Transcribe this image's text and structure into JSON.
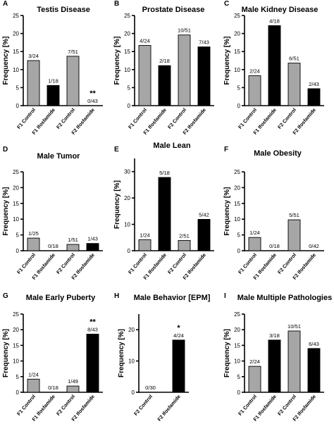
{
  "colors": {
    "control": "#a6a6a6",
    "ifosfamide": "#000000",
    "axis": "#000000"
  },
  "chart_data": [
    {
      "letter": "A",
      "title": "Testis Disease",
      "type": "bar",
      "ylabel": "Frequency [%]",
      "ylim": [
        0,
        25
      ],
      "yticks": [
        0,
        5,
        10,
        15,
        20,
        25
      ],
      "categories": [
        "F1 Control",
        "F1 Ifosfamide",
        "F2 Control",
        "F2 Ifosfamide"
      ],
      "values": [
        12.5,
        5.6,
        13.7,
        0
      ],
      "groups": [
        "control",
        "ifosfamide",
        "control",
        "ifosfamide"
      ],
      "labels": [
        "3/24",
        "1/18",
        "7/51",
        "0/43"
      ],
      "significance": [
        "",
        "",
        "",
        "**"
      ]
    },
    {
      "letter": "B",
      "title": "Prostate Disease",
      "type": "bar",
      "ylabel": "Frequency [%]",
      "ylim": [
        0,
        25
      ],
      "yticks": [
        0,
        5,
        10,
        15,
        20,
        25
      ],
      "categories": [
        "F1 Control",
        "F1 Ifosfamide",
        "F2 Control",
        "F2 Ifosfamide"
      ],
      "values": [
        16.7,
        11.1,
        19.6,
        16.3
      ],
      "groups": [
        "control",
        "ifosfamide",
        "control",
        "ifosfamide"
      ],
      "labels": [
        "4/24",
        "2/18",
        "10/51",
        "7/43"
      ],
      "significance": [
        "",
        "",
        "",
        ""
      ]
    },
    {
      "letter": "C",
      "title": "Male Kidney Disease",
      "type": "bar",
      "ylabel": "Frequency [%]",
      "ylim": [
        0,
        25
      ],
      "yticks": [
        0,
        5,
        10,
        15,
        20,
        25
      ],
      "categories": [
        "F1 Control",
        "F1 Ifosfamide",
        "F2 Control",
        "F2 Ifosfamide"
      ],
      "values": [
        8.3,
        22.2,
        11.8,
        4.7
      ],
      "groups": [
        "control",
        "ifosfamide",
        "control",
        "ifosfamide"
      ],
      "labels": [
        "2/24",
        "4/18",
        "6/51",
        "2/43"
      ],
      "significance": [
        "",
        "",
        "",
        ""
      ]
    },
    {
      "letter": "D",
      "title": "Male Tumor",
      "type": "bar",
      "ylabel": "Frequency [%]",
      "ylim": [
        0,
        25
      ],
      "yticks": [
        0,
        5,
        10,
        15,
        20,
        25
      ],
      "categories": [
        "F1 Control",
        "F1 Ifosfamide",
        "F2 Control",
        "F2 Ifosfamide"
      ],
      "values": [
        4.0,
        0,
        2.0,
        2.3
      ],
      "groups": [
        "control",
        "ifosfamide",
        "control",
        "ifosfamide"
      ],
      "labels": [
        "1/25",
        "0/18",
        "1/51",
        "1/43"
      ],
      "significance": [
        "",
        "",
        "",
        ""
      ]
    },
    {
      "letter": "E",
      "title": "Male Lean",
      "type": "bar",
      "ylabel": "Frequency [%]",
      "ylim": [
        0,
        35
      ],
      "yticks": [
        0,
        10,
        20,
        30
      ],
      "categories": [
        "F1 Control",
        "F1 Ifosfamide",
        "F2 Control",
        "F2 Ifosfamide"
      ],
      "values": [
        4.2,
        27.8,
        3.9,
        11.9
      ],
      "groups": [
        "control",
        "ifosfamide",
        "control",
        "ifosfamide"
      ],
      "labels": [
        "1/24",
        "5/18",
        "2/51",
        "5/42"
      ],
      "significance": [
        "",
        "",
        "",
        ""
      ]
    },
    {
      "letter": "F",
      "title": "Male Obesity",
      "type": "bar",
      "ylabel": "Frequency [%]",
      "ylim": [
        0,
        25
      ],
      "yticks": [
        0,
        5,
        10,
        15,
        20,
        25
      ],
      "categories": [
        "F1 Control",
        "F1 Ifosfamide",
        "F2 Control",
        "F2 Ifosfamide"
      ],
      "values": [
        4.2,
        0,
        9.8,
        0
      ],
      "groups": [
        "control",
        "ifosfamide",
        "control",
        "ifosfamide"
      ],
      "labels": [
        "1/24",
        "0/18",
        "5/51",
        "0/42"
      ],
      "significance": [
        "",
        "",
        "",
        ""
      ]
    },
    {
      "letter": "G",
      "title": "Male Early Puberty",
      "type": "bar",
      "ylabel": "Frequency [%]",
      "ylim": [
        0,
        25
      ],
      "yticks": [
        0,
        5,
        10,
        15,
        20,
        25
      ],
      "categories": [
        "F1 Control",
        "F1 Ifosfamide",
        "F2 Control",
        "F2 Ifosfamide"
      ],
      "values": [
        4.2,
        0,
        2.0,
        18.6
      ],
      "groups": [
        "control",
        "ifosfamide",
        "control",
        "ifosfamide"
      ],
      "labels": [
        "1/24",
        "0/18",
        "1/49",
        "8/43"
      ],
      "significance": [
        "",
        "",
        "",
        "**"
      ]
    },
    {
      "letter": "H",
      "title": "Male Behavior [EPM]",
      "type": "bar",
      "ylabel": "Frequency [%]",
      "ylim": [
        0,
        25
      ],
      "yticks": [
        0,
        10,
        20
      ],
      "categories": [
        "F2 Control",
        "F2 Ifosfamide"
      ],
      "values": [
        0,
        16.7
      ],
      "groups": [
        "control",
        "ifosfamide"
      ],
      "labels": [
        "0/30",
        "4/24"
      ],
      "significance": [
        "",
        "*"
      ]
    },
    {
      "letter": "I",
      "title": "Male Multiple Pathologies",
      "type": "bar",
      "ylabel": "Frequency [%]",
      "ylim": [
        0,
        25
      ],
      "yticks": [
        0,
        5,
        10,
        15,
        20,
        25
      ],
      "categories": [
        "F1 Control",
        "F1 Ifosfamide",
        "F2 Control",
        "F2 Ifosfamide"
      ],
      "values": [
        8.3,
        16.7,
        19.6,
        14.0
      ],
      "groups": [
        "control",
        "ifosfamide",
        "control",
        "ifosfamide"
      ],
      "labels": [
        "2/24",
        "3/18",
        "10/51",
        "6/43"
      ],
      "significance": [
        "",
        "",
        "",
        ""
      ]
    }
  ]
}
